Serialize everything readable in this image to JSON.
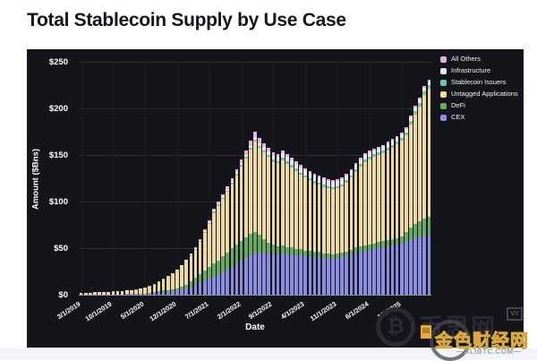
{
  "page": {
    "title": "Total Stablecoin Supply by Use Case"
  },
  "chart_data": {
    "type": "bar",
    "stacked": true,
    "title": "Total Stablecoin Supply by Use Case",
    "xlabel": "Date",
    "ylabel": "Amount ($Bns)",
    "ylim": [
      0,
      250
    ],
    "grid": true,
    "background": "#14151b",
    "y_ticks": [
      "$0",
      "$50",
      "$100",
      "$150",
      "$200",
      "$250"
    ],
    "y_tick_values": [
      0,
      50,
      100,
      150,
      200,
      250
    ],
    "x": [
      "3/1/2019",
      "4/1/2019",
      "5/1/2019",
      "6/1/2019",
      "7/1/2019",
      "8/1/2019",
      "9/1/2019",
      "10/1/2019",
      "11/1/2019",
      "12/1/2019",
      "1/1/2020",
      "2/1/2020",
      "3/1/2020",
      "4/1/2020",
      "5/1/2020",
      "6/1/2020",
      "7/1/2020",
      "8/1/2020",
      "9/1/2020",
      "10/1/2020",
      "11/1/2020",
      "12/1/2020",
      "1/1/2021",
      "2/1/2021",
      "3/1/2021",
      "4/1/2021",
      "5/1/2021",
      "6/1/2021",
      "7/1/2021",
      "8/1/2021",
      "9/1/2021",
      "10/1/2021",
      "11/1/2021",
      "12/1/2021",
      "1/1/2022",
      "2/1/2022",
      "3/1/2022",
      "4/1/2022",
      "5/1/2022",
      "6/1/2022",
      "7/1/2022",
      "8/1/2022",
      "9/1/2022",
      "10/1/2022",
      "11/1/2022",
      "12/1/2022",
      "1/1/2023",
      "2/1/2023",
      "3/1/2023",
      "4/1/2023",
      "5/1/2023",
      "6/1/2023",
      "7/1/2023",
      "8/1/2023",
      "9/1/2023",
      "10/1/2023",
      "11/1/2023",
      "12/1/2023",
      "1/1/2024",
      "2/1/2024",
      "3/1/2024",
      "4/1/2024",
      "5/1/2024",
      "6/1/2024",
      "7/1/2024",
      "8/1/2024",
      "9/1/2024",
      "10/1/2024",
      "11/1/2024",
      "12/1/2024",
      "1/1/2025",
      "2/1/2025",
      "3/1/2025",
      "4/1/2025",
      "5/1/2025",
      "6/1/2025",
      "7/1/2025"
    ],
    "x_tick_indexes": [
      0,
      7,
      14,
      21,
      28,
      35,
      42,
      49,
      56,
      63,
      70
    ],
    "x_tick_labels": [
      "3/1/2019",
      "10/1/2019",
      "5/1/2020",
      "12/1/2020",
      "7/1/2021",
      "2/1/2022",
      "9/1/2022",
      "4/1/2023",
      "11/1/2023",
      "6/1/2024",
      "1/1/2025"
    ],
    "stack_order_bottom_to_top": [
      "CEX",
      "DeFi",
      "Untagged Applications",
      "Stablecoin Issuers",
      "Infrastructure",
      "All Others"
    ],
    "series": [
      {
        "name": "CEX",
        "color": "#8a8de0",
        "values": [
          0.1,
          0.1,
          0.15,
          0.15,
          0.2,
          0.2,
          0.25,
          0.3,
          0.35,
          0.4,
          0.5,
          0.6,
          0.7,
          0.9,
          1.1,
          1.4,
          1.8,
          2.3,
          2.8,
          3.3,
          3.9,
          4.5,
          5.5,
          7,
          9,
          11,
          13,
          15,
          17,
          19,
          21,
          24,
          27,
          30,
          33,
          36,
          39,
          42,
          44,
          45,
          45,
          44,
          44,
          43,
          44,
          43,
          43,
          42,
          42,
          41,
          41,
          40,
          40,
          39,
          39,
          38,
          39,
          40,
          41,
          43,
          45,
          46,
          47,
          48,
          49,
          50,
          51,
          52,
          53,
          54,
          55,
          57,
          59,
          61,
          62,
          63,
          64
        ]
      },
      {
        "name": "DeFi",
        "color": "#67ab63",
        "values": [
          0.05,
          0.05,
          0.05,
          0.05,
          0.06,
          0.06,
          0.07,
          0.07,
          0.08,
          0.08,
          0.1,
          0.12,
          0.15,
          0.2,
          0.3,
          0.5,
          0.8,
          1.2,
          1.6,
          1.9,
          2.2,
          2.5,
          3,
          4,
          5,
          7,
          9,
          11,
          13,
          15,
          16,
          17,
          18,
          20,
          21,
          22,
          23,
          23,
          23,
          19,
          15,
          12,
          10,
          9,
          9,
          8,
          8,
          7,
          7,
          6,
          6,
          6,
          6,
          5,
          5,
          5,
          5,
          5,
          5,
          5,
          6,
          6,
          6,
          6,
          6,
          7,
          7,
          7,
          7,
          7,
          8,
          10,
          13,
          15,
          17,
          19,
          20
        ]
      },
      {
        "name": "Untagged Applications",
        "color": "#ecd9a2",
        "values": [
          1.53,
          1.73,
          1.88,
          2.16,
          2.39,
          2.58,
          2.71,
          2.94,
          3.17,
          3.41,
          3.65,
          3.93,
          4.45,
          5.52,
          6.35,
          7.1,
          8.28,
          10.25,
          12.22,
          13.8,
          15.78,
          18.75,
          22,
          25.1,
          27.7,
          30.3,
          34.9,
          40.5,
          46.1,
          53.7,
          58.3,
          61.8,
          65.2,
          68.5,
          73.8,
          79.1,
          84.3,
          90.4,
          97.5,
          93.8,
          92.7,
          91.7,
          88.6,
          88.9,
          91.5,
          89.7,
          86,
          84.1,
          79.8,
          78.9,
          76.1,
          73.7,
          71.9,
          71.9,
          70.1,
          70.1,
          70.7,
          71.6,
          74.5,
          77.9,
          80.8,
          85.7,
          89.6,
          91.6,
          93,
          93,
          93.9,
          95.9,
          97.8,
          100.2,
          102.2,
          104,
          110.7,
          117.4,
          123.2,
          132,
          136.9
        ]
      },
      {
        "name": "Stablecoin Issuers",
        "color": "#74c0ad",
        "values": [
          0.05,
          0.05,
          0.05,
          0.05,
          0.06,
          0.06,
          0.07,
          0.07,
          0.08,
          0.08,
          0.1,
          0.1,
          0.12,
          0.15,
          0.18,
          0.2,
          0.25,
          0.3,
          0.35,
          0.4,
          0.45,
          0.5,
          0.6,
          0.7,
          0.8,
          0.9,
          1,
          1.1,
          1.2,
          1.3,
          1.4,
          1.5,
          1.6,
          1.7,
          1.8,
          1.9,
          2,
          2.1,
          2.2,
          2.2,
          2.3,
          2.3,
          2.4,
          2.4,
          2.5,
          2.5,
          2.4,
          2.4,
          2.3,
          2.3,
          2.2,
          2.2,
          2.1,
          2.1,
          2,
          2,
          2,
          2.1,
          2.2,
          2.3,
          2.4,
          2.5,
          2.6,
          2.6,
          2.7,
          2.7,
          2.8,
          2.8,
          2.9,
          3,
          3,
          3.2,
          3.4,
          3.6,
          3.8,
          4,
          4
        ]
      },
      {
        "name": "Infrastructure",
        "color": "#e6e6f0",
        "values": [
          0.02,
          0.02,
          0.02,
          0.03,
          0.03,
          0.03,
          0.03,
          0.04,
          0.04,
          0.04,
          0.05,
          0.05,
          0.06,
          0.08,
          0.09,
          0.1,
          0.12,
          0.15,
          0.18,
          0.2,
          0.22,
          0.25,
          0.3,
          0.4,
          0.5,
          0.6,
          0.7,
          0.8,
          0.9,
          1,
          1.1,
          1.2,
          1.4,
          1.6,
          1.8,
          2,
          2.2,
          2.5,
          2.8,
          3,
          3.5,
          4,
          4.5,
          4.5,
          5,
          5,
          5,
          5,
          5.5,
          5.5,
          5.5,
          6,
          6,
          6,
          6,
          6,
          5.5,
          5.5,
          5.5,
          5,
          5,
          5,
          5,
          5,
          4.5,
          4.5,
          4.5,
          4.5,
          4.5,
          4,
          4,
          4,
          4,
          4,
          4,
          4,
          4
        ]
      },
      {
        "name": "All Others",
        "color": "#e7aede",
        "values": [
          0.05,
          0.05,
          0.05,
          0.06,
          0.06,
          0.07,
          0.07,
          0.08,
          0.08,
          0.09,
          0.1,
          0.1,
          0.12,
          0.15,
          0.18,
          0.2,
          0.25,
          0.3,
          0.35,
          0.4,
          0.45,
          0.5,
          0.6,
          0.8,
          1,
          1.2,
          1.4,
          1.6,
          1.8,
          2,
          2.2,
          2.5,
          2.8,
          3.2,
          3.6,
          4,
          4.5,
          5,
          5.5,
          5,
          4.5,
          4,
          3.5,
          3.2,
          3,
          2.8,
          2.6,
          2.5,
          2.4,
          2.3,
          2.2,
          2.1,
          2,
          2,
          1.9,
          1.9,
          1.8,
          1.8,
          1.8,
          1.8,
          1.8,
          1.8,
          1.8,
          1.8,
          1.8,
          1.8,
          1.8,
          1.8,
          1.8,
          1.8,
          1.8,
          1.8,
          1.9,
          2,
          2,
          2,
          2.1
        ]
      }
    ],
    "legend_items": [
      {
        "label": "All Others",
        "color": "#e7aede"
      },
      {
        "label": "Infrastructure",
        "color": "#e6e6f0"
      },
      {
        "label": "Stablecoin Issuers",
        "color": "#74c0ad"
      },
      {
        "label": "Untagged Applications",
        "color": "#ecd9a2"
      },
      {
        "label": "DeFi",
        "color": "#67ab63"
      },
      {
        "label": "CEX",
        "color": "#8a8de0"
      }
    ],
    "legend_position": "top-right"
  },
  "watermark": {
    "btc_symbol": "₿",
    "cjk_dark": "币思网",
    "badge": "VV",
    "cjk_yellow": "金色财经网",
    "url": "—ALIBTC.COM—"
  }
}
